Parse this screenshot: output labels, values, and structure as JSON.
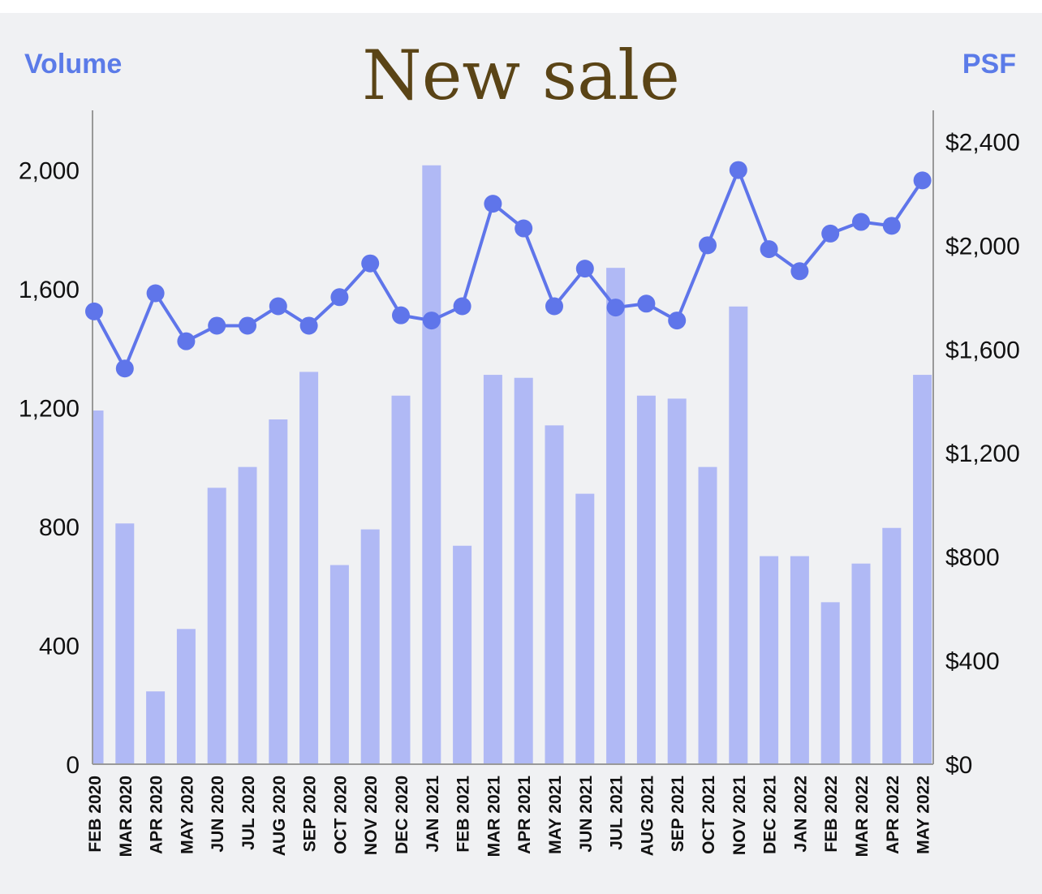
{
  "chart_data": {
    "type": "bar+line",
    "title": "New sale",
    "left_axis_title": "Volume",
    "right_axis_title": "PSF",
    "categories": [
      "FEB 2020",
      "MAR 2020",
      "APR 2020",
      "MAY 2020",
      "JUN 2020",
      "JUL 2020",
      "AUG 2020",
      "SEP 2020",
      "OCT 2020",
      "NOV 2020",
      "DEC 2020",
      "JAN 2021",
      "FEB 2021",
      "MAR 2021",
      "APR 2021",
      "MAY 2021",
      "JUN 2021",
      "JUL 2021",
      "AUG 2021",
      "SEP 2021",
      "OCT 2021",
      "NOV 2021",
      "DEC 2021",
      "JAN 2022",
      "FEB 2022",
      "MAR 2022",
      "APR 2022",
      "MAY 2022"
    ],
    "volume": [
      1190,
      810,
      245,
      455,
      930,
      1000,
      1160,
      1320,
      670,
      790,
      1240,
      2015,
      735,
      1310,
      1300,
      1140,
      910,
      1670,
      1240,
      1230,
      1000,
      1540,
      700,
      700,
      545,
      675,
      795,
      1310
    ],
    "psf": [
      1745,
      1525,
      1815,
      1630,
      1690,
      1690,
      1765,
      1690,
      1800,
      1930,
      1730,
      1710,
      1765,
      2160,
      2065,
      1765,
      1910,
      1760,
      1775,
      1710,
      2000,
      2290,
      1985,
      1900,
      2045,
      2090,
      2075,
      2250
    ],
    "left_ylim": [
      0,
      2200
    ],
    "right_ylim": [
      0,
      2520
    ],
    "left_ticks": [
      "0",
      "400",
      "800",
      "1,200",
      "1,600",
      "2,000"
    ],
    "right_ticks": [
      "$0",
      "$400",
      "$800",
      "$1,200",
      "$1,600",
      "$2,000",
      "$2,400"
    ],
    "left_tick_values": [
      0,
      400,
      800,
      1200,
      1600,
      2000
    ],
    "right_tick_values": [
      0,
      400,
      800,
      1200,
      1600,
      2000,
      2400
    ],
    "grid": false,
    "colors": {
      "bar": "#b0b9f5",
      "line": "#5f75ea",
      "axis_title": "#5b7be8",
      "title": "#5a4416",
      "tick_text": "#111111",
      "axis_line": "#999999"
    }
  }
}
